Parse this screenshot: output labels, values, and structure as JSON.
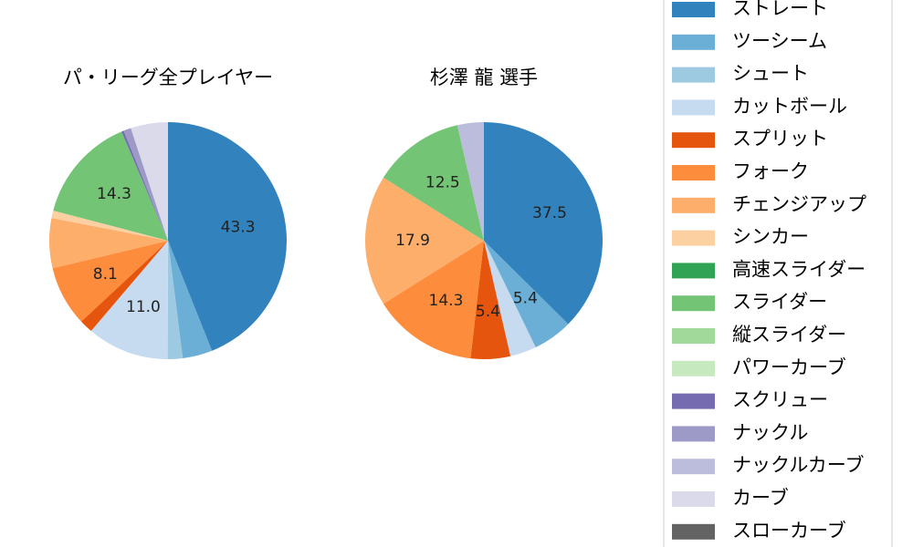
{
  "chart_data": {
    "type": "pie",
    "categories": [
      "ストレート",
      "ツーシーム",
      "シュート",
      "カットボール",
      "スプリット",
      "フォーク",
      "チェンジアップ",
      "シンカー",
      "高速スライダー",
      "スライダー",
      "縦スライダー",
      "パワーカーブ",
      "スクリュー",
      "ナックル",
      "ナックルカーブ",
      "カーブ",
      "スローカーブ"
    ],
    "colors": [
      "#3182bd",
      "#6baed6",
      "#9ecae1",
      "#c6dbef",
      "#e6550d",
      "#fd8d3c",
      "#fdae6b",
      "#fdd0a2",
      "#31a354",
      "#74c476",
      "#a1d99b",
      "#c7e9c0",
      "#756bb1",
      "#9e9ac8",
      "#bcbddc",
      "#dadaeb",
      "#636363"
    ],
    "charts": [
      {
        "title": "パ・リーグ全プレイヤー",
        "values": [
          43.3,
          4.0,
          2.0,
          11.0,
          1.8,
          8.1,
          6.7,
          1.0,
          0.0,
          14.3,
          0.0,
          0.0,
          0.3,
          1.0,
          0.0,
          5.0,
          0.0
        ],
        "labels": [
          "43.3",
          "",
          "",
          "11.0",
          "",
          "8.1",
          "",
          "",
          "",
          "14.3",
          "",
          "",
          "",
          "",
          "",
          "",
          ""
        ]
      },
      {
        "title": "杉澤 龍  選手",
        "values": [
          37.5,
          5.4,
          0.0,
          3.6,
          5.4,
          14.3,
          17.9,
          0.0,
          0.0,
          12.5,
          0.0,
          0.0,
          0.0,
          0.0,
          3.6,
          0.0,
          0.0
        ],
        "labels": [
          "37.5",
          "5.4",
          "",
          "",
          "5.4",
          "14.3",
          "17.9",
          "",
          "",
          "12.5",
          "",
          "",
          "",
          "",
          "",
          "",
          ""
        ]
      }
    ]
  }
}
